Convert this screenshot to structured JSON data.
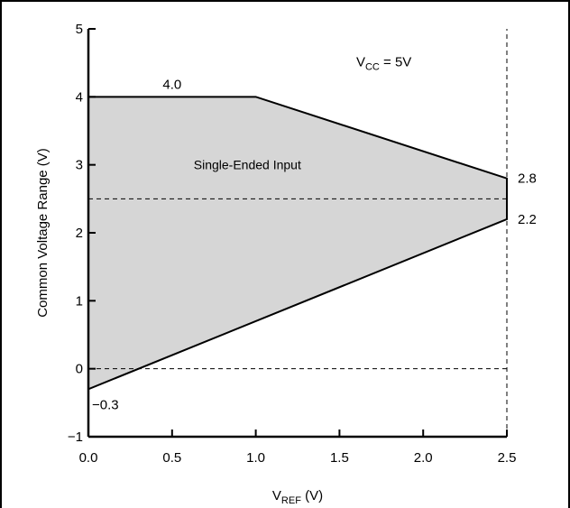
{
  "chart_data": {
    "type": "area",
    "title": "",
    "xlabel": {
      "main": "V",
      "sub": "REF",
      "suffix": " (V)"
    },
    "ylabel": "Common Voltage Range (V)",
    "xlim": [
      0,
      2.5
    ],
    "ylim": [
      -1,
      5
    ],
    "x_ticks": [
      {
        "value": 0.0,
        "label": "0.0"
      },
      {
        "value": 0.5,
        "label": "0.5"
      },
      {
        "value": 1.0,
        "label": "1.0"
      },
      {
        "value": 1.5,
        "label": "1.5"
      },
      {
        "value": 2.0,
        "label": "2.0"
      },
      {
        "value": 2.5,
        "label": "2.5"
      }
    ],
    "y_ticks": [
      {
        "value": -1,
        "label": "−1"
      },
      {
        "value": 0,
        "label": "0"
      },
      {
        "value": 1,
        "label": "1"
      },
      {
        "value": 2,
        "label": "2"
      },
      {
        "value": 3,
        "label": "3"
      },
      {
        "value": 4,
        "label": "4"
      },
      {
        "value": 5,
        "label": "5"
      }
    ],
    "grid": false,
    "series": [
      {
        "x": [
          0,
          1.0,
          2.5
        ],
        "y": [
          4.0,
          4.0,
          2.8
        ]
      },
      {
        "x": [
          0,
          2.5
        ],
        "y": [
          -0.3,
          2.2
        ]
      }
    ],
    "reference_lines": [
      {
        "orientation": "horizontal",
        "value": 2.5,
        "from": 0,
        "to": 2.5
      },
      {
        "orientation": "horizontal",
        "value": 0,
        "from": 0,
        "to": 2.5
      },
      {
        "orientation": "vertical",
        "value": 2.5,
        "from": -1,
        "to": 5
      }
    ],
    "annotations": {
      "region_label": "Single-Ended Input",
      "condition": {
        "main": "V",
        "sub": "CC",
        "suffix": " = 5V"
      },
      "value_labels": [
        {
          "text": "4.0",
          "x": 0.5,
          "y": 4.0,
          "position": "above"
        },
        {
          "text": "2.8",
          "x": 2.5,
          "y": 2.8,
          "position": "right"
        },
        {
          "text": "2.2",
          "x": 2.5,
          "y": 2.2,
          "position": "right"
        },
        {
          "text": "−0.3",
          "x": 0,
          "y": -0.3,
          "position": "below-right"
        }
      ]
    },
    "colors": {
      "region_fill": "#d6d6d6",
      "line": "#000000"
    }
  }
}
